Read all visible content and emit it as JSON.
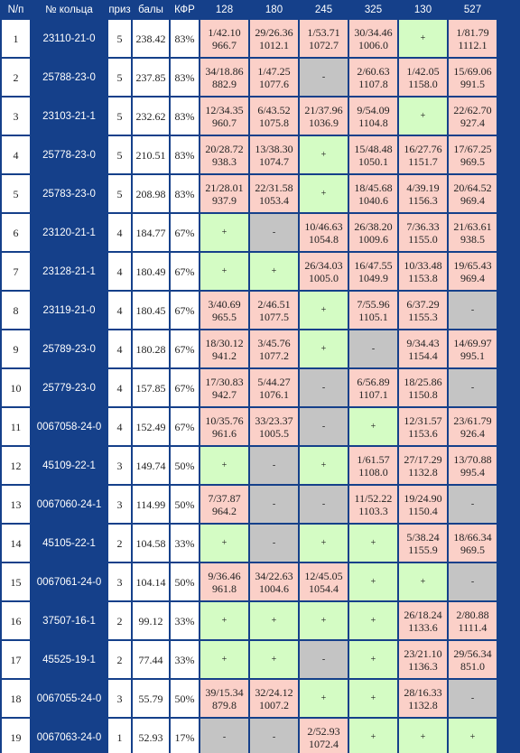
{
  "colors": {
    "header_bg": "#15408a",
    "hit": "#fbd0c8",
    "plus": "#d4fcc4",
    "miss": "#c4c4c4"
  },
  "table": {
    "headers": [
      "N/п",
      "№ кольца",
      "приз",
      "балы",
      "КФР",
      "128",
      "180",
      "245",
      "325",
      "130",
      "527"
    ],
    "rows": [
      {
        "n": "1",
        "ring": "23110-21-0",
        "prize": "5",
        "score": "238.42",
        "kfr": "83%",
        "results": [
          {
            "s": "hit",
            "a": "1/42.10",
            "b": "966.7"
          },
          {
            "s": "hit",
            "a": "29/26.36",
            "b": "1012.1"
          },
          {
            "s": "hit",
            "a": "1/53.71",
            "b": "1072.7"
          },
          {
            "s": "hit",
            "a": "30/34.46",
            "b": "1006.0"
          },
          {
            "s": "plus",
            "a": "+",
            "b": ""
          },
          {
            "s": "hit",
            "a": "1/81.79",
            "b": "1112.1"
          }
        ]
      },
      {
        "n": "2",
        "ring": "25788-23-0",
        "prize": "5",
        "score": "237.85",
        "kfr": "83%",
        "results": [
          {
            "s": "hit",
            "a": "34/18.86",
            "b": "882.9"
          },
          {
            "s": "hit",
            "a": "1/47.25",
            "b": "1077.6"
          },
          {
            "s": "miss",
            "a": "-",
            "b": ""
          },
          {
            "s": "hit",
            "a": "2/60.63",
            "b": "1107.8"
          },
          {
            "s": "hit",
            "a": "1/42.05",
            "b": "1158.0"
          },
          {
            "s": "hit",
            "a": "15/69.06",
            "b": "991.5"
          }
        ]
      },
      {
        "n": "3",
        "ring": "23103-21-1",
        "prize": "5",
        "score": "232.62",
        "kfr": "83%",
        "results": [
          {
            "s": "hit",
            "a": "12/34.35",
            "b": "960.7"
          },
          {
            "s": "hit",
            "a": "6/43.52",
            "b": "1075.8"
          },
          {
            "s": "hit",
            "a": "21/37.96",
            "b": "1036.9"
          },
          {
            "s": "hit",
            "a": "9/54.09",
            "b": "1104.8"
          },
          {
            "s": "plus",
            "a": "+",
            "b": ""
          },
          {
            "s": "hit",
            "a": "22/62.70",
            "b": "927.4"
          }
        ]
      },
      {
        "n": "4",
        "ring": "25778-23-0",
        "prize": "5",
        "score": "210.51",
        "kfr": "83%",
        "results": [
          {
            "s": "hit",
            "a": "20/28.72",
            "b": "938.3"
          },
          {
            "s": "hit",
            "a": "13/38.30",
            "b": "1074.7"
          },
          {
            "s": "plus",
            "a": "+",
            "b": ""
          },
          {
            "s": "hit",
            "a": "15/48.48",
            "b": "1050.1"
          },
          {
            "s": "hit",
            "a": "16/27.76",
            "b": "1151.7"
          },
          {
            "s": "hit",
            "a": "17/67.25",
            "b": "969.5"
          }
        ]
      },
      {
        "n": "5",
        "ring": "25783-23-0",
        "prize": "5",
        "score": "208.98",
        "kfr": "83%",
        "results": [
          {
            "s": "hit",
            "a": "21/28.01",
            "b": "937.9"
          },
          {
            "s": "hit",
            "a": "22/31.58",
            "b": "1053.4"
          },
          {
            "s": "plus",
            "a": "+",
            "b": ""
          },
          {
            "s": "hit",
            "a": "18/45.68",
            "b": "1040.6"
          },
          {
            "s": "hit",
            "a": "4/39.19",
            "b": "1156.3"
          },
          {
            "s": "hit",
            "a": "20/64.52",
            "b": "969.4"
          }
        ]
      },
      {
        "n": "6",
        "ring": "23120-21-1",
        "prize": "4",
        "score": "184.77",
        "kfr": "67%",
        "results": [
          {
            "s": "plus",
            "a": "+",
            "b": ""
          },
          {
            "s": "miss",
            "a": "-",
            "b": ""
          },
          {
            "s": "hit",
            "a": "10/46.63",
            "b": "1054.8"
          },
          {
            "s": "hit",
            "a": "26/38.20",
            "b": "1009.6"
          },
          {
            "s": "hit",
            "a": "7/36.33",
            "b": "1155.0"
          },
          {
            "s": "hit",
            "a": "21/63.61",
            "b": "938.5"
          }
        ]
      },
      {
        "n": "7",
        "ring": "23128-21-1",
        "prize": "4",
        "score": "180.49",
        "kfr": "67%",
        "results": [
          {
            "s": "plus",
            "a": "+",
            "b": ""
          },
          {
            "s": "plus",
            "a": "+",
            "b": ""
          },
          {
            "s": "hit",
            "a": "26/34.03",
            "b": "1005.0"
          },
          {
            "s": "hit",
            "a": "16/47.55",
            "b": "1049.9"
          },
          {
            "s": "hit",
            "a": "10/33.48",
            "b": "1153.8"
          },
          {
            "s": "hit",
            "a": "19/65.43",
            "b": "969.4"
          }
        ]
      },
      {
        "n": "8",
        "ring": "23119-21-0",
        "prize": "4",
        "score": "180.45",
        "kfr": "67%",
        "results": [
          {
            "s": "hit",
            "a": "3/40.69",
            "b": "965.5"
          },
          {
            "s": "hit",
            "a": "2/46.51",
            "b": "1077.5"
          },
          {
            "s": "plus",
            "a": "+",
            "b": ""
          },
          {
            "s": "hit",
            "a": "7/55.96",
            "b": "1105.1"
          },
          {
            "s": "hit",
            "a": "6/37.29",
            "b": "1155.3"
          },
          {
            "s": "miss",
            "a": "-",
            "b": ""
          }
        ]
      },
      {
        "n": "9",
        "ring": "25789-23-0",
        "prize": "4",
        "score": "180.28",
        "kfr": "67%",
        "results": [
          {
            "s": "hit",
            "a": "18/30.12",
            "b": "941.2"
          },
          {
            "s": "hit",
            "a": "3/45.76",
            "b": "1077.2"
          },
          {
            "s": "plus",
            "a": "+",
            "b": ""
          },
          {
            "s": "miss",
            "a": "-",
            "b": ""
          },
          {
            "s": "hit",
            "a": "9/34.43",
            "b": "1154.4"
          },
          {
            "s": "hit",
            "a": "14/69.97",
            "b": "995.1"
          }
        ]
      },
      {
        "n": "10",
        "ring": "25779-23-0",
        "prize": "4",
        "score": "157.85",
        "kfr": "67%",
        "results": [
          {
            "s": "hit",
            "a": "17/30.83",
            "b": "942.7"
          },
          {
            "s": "hit",
            "a": "5/44.27",
            "b": "1076.1"
          },
          {
            "s": "miss",
            "a": "-",
            "b": ""
          },
          {
            "s": "hit",
            "a": "6/56.89",
            "b": "1107.1"
          },
          {
            "s": "hit",
            "a": "18/25.86",
            "b": "1150.8"
          },
          {
            "s": "miss",
            "a": "-",
            "b": ""
          }
        ]
      },
      {
        "n": "11",
        "ring": "0067058-24-0",
        "prize": "4",
        "score": "152.49",
        "kfr": "67%",
        "results": [
          {
            "s": "hit",
            "a": "10/35.76",
            "b": "961.6"
          },
          {
            "s": "hit",
            "a": "33/23.37",
            "b": "1005.5"
          },
          {
            "s": "miss",
            "a": "-",
            "b": ""
          },
          {
            "s": "plus",
            "a": "+",
            "b": ""
          },
          {
            "s": "hit",
            "a": "12/31.57",
            "b": "1153.6"
          },
          {
            "s": "hit",
            "a": "23/61.79",
            "b": "926.4"
          }
        ]
      },
      {
        "n": "12",
        "ring": "45109-22-1",
        "prize": "3",
        "score": "149.74",
        "kfr": "50%",
        "results": [
          {
            "s": "plus",
            "a": "+",
            "b": ""
          },
          {
            "s": "miss",
            "a": "-",
            "b": ""
          },
          {
            "s": "plus",
            "a": "+",
            "b": ""
          },
          {
            "s": "hit",
            "a": "1/61.57",
            "b": "1108.0"
          },
          {
            "s": "hit",
            "a": "27/17.29",
            "b": "1132.8"
          },
          {
            "s": "hit",
            "a": "13/70.88",
            "b": "995.4"
          }
        ]
      },
      {
        "n": "13",
        "ring": "0067060-24-1",
        "prize": "3",
        "score": "114.99",
        "kfr": "50%",
        "results": [
          {
            "s": "hit",
            "a": "7/37.87",
            "b": "964.2"
          },
          {
            "s": "miss",
            "a": "-",
            "b": ""
          },
          {
            "s": "miss",
            "a": "-",
            "b": ""
          },
          {
            "s": "hit",
            "a": "11/52.22",
            "b": "1103.3"
          },
          {
            "s": "hit",
            "a": "19/24.90",
            "b": "1150.4"
          },
          {
            "s": "miss",
            "a": "-",
            "b": ""
          }
        ]
      },
      {
        "n": "14",
        "ring": "45105-22-1",
        "prize": "2",
        "score": "104.58",
        "kfr": "33%",
        "results": [
          {
            "s": "plus",
            "a": "+",
            "b": ""
          },
          {
            "s": "miss",
            "a": "-",
            "b": ""
          },
          {
            "s": "plus",
            "a": "+",
            "b": ""
          },
          {
            "s": "plus",
            "a": "+",
            "b": ""
          },
          {
            "s": "hit",
            "a": "5/38.24",
            "b": "1155.9"
          },
          {
            "s": "hit",
            "a": "18/66.34",
            "b": "969.5"
          }
        ]
      },
      {
        "n": "15",
        "ring": "0067061-24-0",
        "prize": "3",
        "score": "104.14",
        "kfr": "50%",
        "results": [
          {
            "s": "hit",
            "a": "9/36.46",
            "b": "961.8"
          },
          {
            "s": "hit",
            "a": "34/22.63",
            "b": "1004.6"
          },
          {
            "s": "hit",
            "a": "12/45.05",
            "b": "1054.4"
          },
          {
            "s": "plus",
            "a": "+",
            "b": ""
          },
          {
            "s": "plus",
            "a": "+",
            "b": ""
          },
          {
            "s": "miss",
            "a": "-",
            "b": ""
          }
        ]
      },
      {
        "n": "16",
        "ring": "37507-16-1",
        "prize": "2",
        "score": "99.12",
        "kfr": "33%",
        "results": [
          {
            "s": "plus",
            "a": "+",
            "b": ""
          },
          {
            "s": "plus",
            "a": "+",
            "b": ""
          },
          {
            "s": "plus",
            "a": "+",
            "b": ""
          },
          {
            "s": "plus",
            "a": "+",
            "b": ""
          },
          {
            "s": "hit",
            "a": "26/18.24",
            "b": "1133.6"
          },
          {
            "s": "hit",
            "a": "2/80.88",
            "b": "1111.4"
          }
        ]
      },
      {
        "n": "17",
        "ring": "45525-19-1",
        "prize": "2",
        "score": "77.44",
        "kfr": "33%",
        "results": [
          {
            "s": "plus",
            "a": "+",
            "b": ""
          },
          {
            "s": "plus",
            "a": "+",
            "b": ""
          },
          {
            "s": "miss",
            "a": "-",
            "b": ""
          },
          {
            "s": "plus",
            "a": "+",
            "b": ""
          },
          {
            "s": "hit",
            "a": "23/21.10",
            "b": "1136.3"
          },
          {
            "s": "hit",
            "a": "29/56.34",
            "b": "851.0"
          }
        ]
      },
      {
        "n": "18",
        "ring": "0067055-24-0",
        "prize": "3",
        "score": "55.79",
        "kfr": "50%",
        "results": [
          {
            "s": "hit",
            "a": "39/15.34",
            "b": "879.8"
          },
          {
            "s": "hit",
            "a": "32/24.12",
            "b": "1007.2"
          },
          {
            "s": "plus",
            "a": "+",
            "b": ""
          },
          {
            "s": "plus",
            "a": "+",
            "b": ""
          },
          {
            "s": "hit",
            "a": "28/16.33",
            "b": "1132.8"
          },
          {
            "s": "miss",
            "a": "-",
            "b": ""
          }
        ]
      },
      {
        "n": "19",
        "ring": "0067063-24-0",
        "prize": "1",
        "score": "52.93",
        "kfr": "17%",
        "results": [
          {
            "s": "miss",
            "a": "-",
            "b": ""
          },
          {
            "s": "miss",
            "a": "-",
            "b": ""
          },
          {
            "s": "hit",
            "a": "2/52.93",
            "b": "1072.4"
          },
          {
            "s": "plus",
            "a": "+",
            "b": ""
          },
          {
            "s": "plus",
            "a": "+",
            "b": ""
          },
          {
            "s": "plus",
            "a": "+",
            "b": ""
          }
        ]
      }
    ]
  }
}
